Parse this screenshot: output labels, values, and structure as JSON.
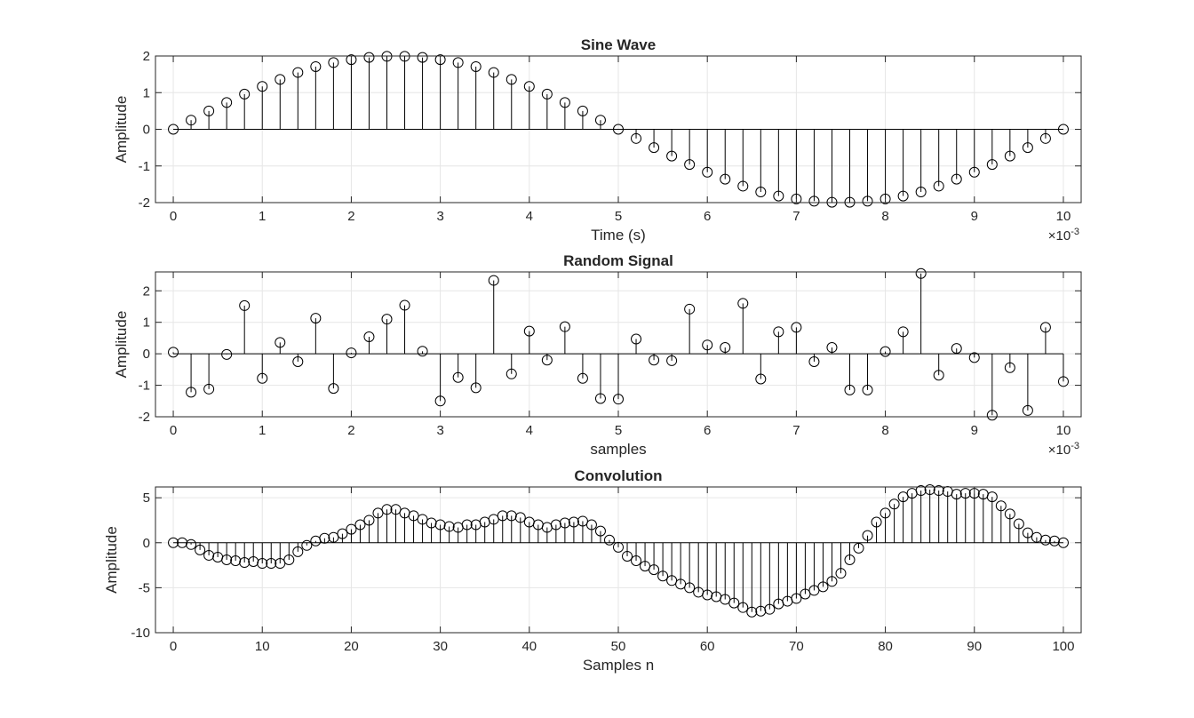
{
  "chart_data": [
    {
      "type": "stem",
      "title": "Sine Wave",
      "xlabel": "Time (s)",
      "ylabel": "Amplitude",
      "x_exponent_label": "×10",
      "x_exponent": "-3",
      "xlim": [
        -0.0002,
        0.0102
      ],
      "ylim": [
        -2,
        2
      ],
      "xticks": [
        0,
        0.001,
        0.002,
        0.003,
        0.004,
        0.005,
        0.006,
        0.007,
        0.008,
        0.009,
        0.01
      ],
      "xtick_labels": [
        "0",
        "1",
        "2",
        "3",
        "4",
        "5",
        "6",
        "7",
        "8",
        "9",
        "10"
      ],
      "yticks": [
        -2,
        -1,
        0,
        1,
        2
      ],
      "ytick_labels": [
        "-2",
        "-1",
        "0",
        "1",
        "2"
      ],
      "grid": true,
      "x": [
        0,
        0.0002,
        0.0004,
        0.0006,
        0.0008,
        0.001,
        0.0012,
        0.0014,
        0.0016,
        0.0018,
        0.002,
        0.0022,
        0.0024,
        0.0026,
        0.0028,
        0.003,
        0.0032,
        0.0034,
        0.0036,
        0.0038,
        0.004,
        0.0042,
        0.0044,
        0.0046,
        0.0048,
        0.005,
        0.0052,
        0.0054,
        0.0056,
        0.0058,
        0.006,
        0.0062,
        0.0064,
        0.0066,
        0.0068,
        0.007,
        0.0072,
        0.0074,
        0.0076,
        0.0078,
        0.008,
        0.0082,
        0.0084,
        0.0086,
        0.0088,
        0.009,
        0.0092,
        0.0094,
        0.0096,
        0.0098,
        0.01
      ],
      "y": [
        0,
        0.25,
        0.5,
        0.73,
        0.96,
        1.17,
        1.36,
        1.55,
        1.71,
        1.82,
        1.9,
        1.96,
        1.99,
        1.99,
        1.96,
        1.9,
        1.82,
        1.71,
        1.55,
        1.36,
        1.17,
        0.96,
        0.73,
        0.5,
        0.25,
        0,
        -0.25,
        -0.5,
        -0.73,
        -0.96,
        -1.17,
        -1.36,
        -1.55,
        -1.71,
        -1.82,
        -1.9,
        -1.96,
        -1.99,
        -1.99,
        -1.96,
        -1.9,
        -1.82,
        -1.71,
        -1.55,
        -1.36,
        -1.17,
        -0.96,
        -0.73,
        -0.5,
        -0.25,
        0
      ]
    },
    {
      "type": "stem",
      "title": "Random Signal",
      "xlabel": "samples",
      "ylabel": "Amplitude",
      "x_exponent_label": "×10",
      "x_exponent": "-3",
      "xlim": [
        -0.0002,
        0.0102
      ],
      "ylim": [
        -2,
        2.6
      ],
      "xticks": [
        0,
        0.001,
        0.002,
        0.003,
        0.004,
        0.005,
        0.006,
        0.007,
        0.008,
        0.009,
        0.01
      ],
      "xtick_labels": [
        "0",
        "1",
        "2",
        "3",
        "4",
        "5",
        "6",
        "7",
        "8",
        "9",
        "10"
      ],
      "yticks": [
        -2,
        -1,
        0,
        1,
        2
      ],
      "ytick_labels": [
        "-2",
        "-1",
        "0",
        "1",
        "2"
      ],
      "grid": true,
      "x": [
        0,
        0.0002,
        0.0004,
        0.0006,
        0.0008,
        0.001,
        0.0012,
        0.0014,
        0.0016,
        0.0018,
        0.002,
        0.0022,
        0.0024,
        0.0026,
        0.0028,
        0.003,
        0.0032,
        0.0034,
        0.0036,
        0.0038,
        0.004,
        0.0042,
        0.0044,
        0.0046,
        0.0048,
        0.005,
        0.0052,
        0.0054,
        0.0056,
        0.0058,
        0.006,
        0.0062,
        0.0064,
        0.0066,
        0.0068,
        0.007,
        0.0072,
        0.0074,
        0.0076,
        0.0078,
        0.008,
        0.0082,
        0.0084,
        0.0086,
        0.0088,
        0.009,
        0.0092,
        0.0094,
        0.0096,
        0.0098,
        0.01
      ],
      "y": [
        0.05,
        -1.22,
        -1.12,
        -0.02,
        1.53,
        -0.78,
        0.36,
        -0.25,
        1.13,
        -1.1,
        0.03,
        0.54,
        1.1,
        1.54,
        0.08,
        -1.5,
        -0.75,
        -1.08,
        2.33,
        -0.64,
        0.72,
        -0.2,
        0.86,
        -0.78,
        -1.42,
        -1.44,
        0.47,
        -0.2,
        -0.22,
        1.42,
        0.28,
        0.2,
        1.6,
        -0.8,
        0.7,
        0.84,
        -0.25,
        0.2,
        -1.15,
        -1.15,
        0.07,
        0.7,
        2.55,
        -0.68,
        0.17,
        -0.12,
        -1.95,
        -0.44,
        -1.8,
        0.84,
        -0.88
      ]
    },
    {
      "type": "stem",
      "title": "Convolution",
      "xlabel": "Samples n",
      "ylabel": "Amplitude",
      "xlim": [
        -2,
        102
      ],
      "ylim": [
        -10,
        6.2
      ],
      "xticks": [
        0,
        10,
        20,
        30,
        40,
        50,
        60,
        70,
        80,
        90,
        100
      ],
      "xtick_labels": [
        "0",
        "10",
        "20",
        "30",
        "40",
        "50",
        "60",
        "70",
        "80",
        "90",
        "100"
      ],
      "yticks": [
        -10,
        -5,
        0,
        5
      ],
      "ytick_labels": [
        "-10",
        "-5",
        "0",
        "5"
      ],
      "grid": true,
      "x": [
        0,
        1,
        2,
        3,
        4,
        5,
        6,
        7,
        8,
        9,
        10,
        11,
        12,
        13,
        14,
        15,
        16,
        17,
        18,
        19,
        20,
        21,
        22,
        23,
        24,
        25,
        26,
        27,
        28,
        29,
        30,
        31,
        32,
        33,
        34,
        35,
        36,
        37,
        38,
        39,
        40,
        41,
        42,
        43,
        44,
        45,
        46,
        47,
        48,
        49,
        50,
        51,
        52,
        53,
        54,
        55,
        56,
        57,
        58,
        59,
        60,
        61,
        62,
        63,
        64,
        65,
        66,
        67,
        68,
        69,
        70,
        71,
        72,
        73,
        74,
        75,
        76,
        77,
        78,
        79,
        80,
        81,
        82,
        83,
        84,
        85,
        86,
        87,
        88,
        89,
        90,
        91,
        92,
        93,
        94,
        95,
        96,
        97,
        98,
        99,
        100
      ],
      "y": [
        0,
        0,
        -0.2,
        -0.8,
        -1.4,
        -1.6,
        -1.9,
        -2,
        -2.2,
        -2.1,
        -2.3,
        -2.3,
        -2.3,
        -1.9,
        -1,
        -0.3,
        0.2,
        0.5,
        0.6,
        1,
        1.5,
        2,
        2.5,
        3.3,
        3.7,
        3.7,
        3.3,
        3,
        2.6,
        2.2,
        2,
        1.8,
        1.7,
        2,
        2,
        2.3,
        2.6,
        3,
        3,
        2.8,
        2.3,
        2,
        1.7,
        2,
        2.2,
        2.3,
        2.4,
        2,
        1.3,
        0.3,
        -0.5,
        -1.5,
        -2,
        -2.6,
        -3,
        -3.7,
        -4.2,
        -4.6,
        -5,
        -5.5,
        -5.8,
        -6,
        -6.3,
        -6.7,
        -7.2,
        -7.7,
        -7.6,
        -7.4,
        -6.8,
        -6.5,
        -6.2,
        -5.7,
        -5.3,
        -4.9,
        -4.3,
        -3.4,
        -1.9,
        -0.6,
        0.8,
        2.3,
        3.3,
        4.3,
        5.1,
        5.5,
        5.8,
        5.9,
        5.8,
        5.7,
        5.4,
        5.5,
        5.5,
        5.4,
        5.1,
        4.1,
        3.2,
        2.1,
        1.1,
        0.6,
        0.3,
        0.2,
        0
      ]
    }
  ]
}
